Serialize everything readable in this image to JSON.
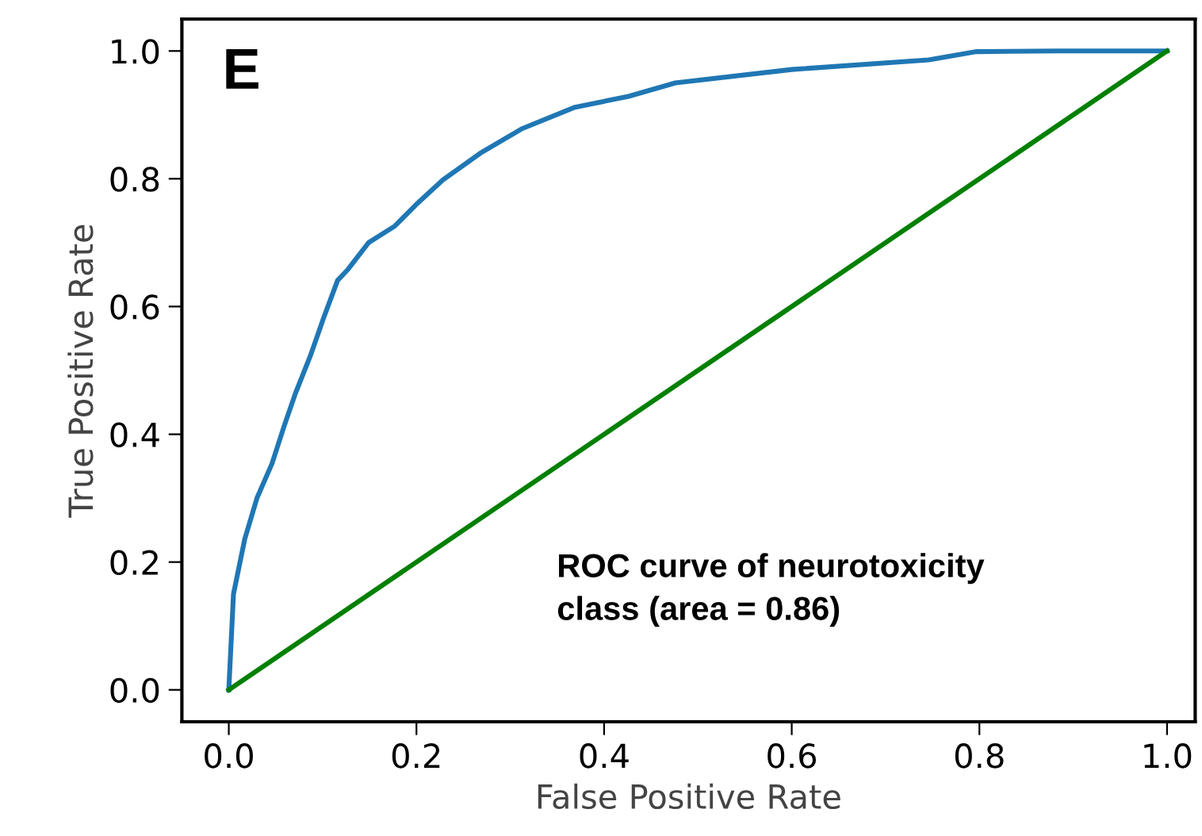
{
  "chart_data": {
    "type": "line",
    "xlabel": "False Positive Rate",
    "ylabel": "True Positive Rate",
    "annotations": [
      "E",
      "ROC curve of neurotoxicity\nclass (area = 0.86)"
    ],
    "xlim": [
      -0.05,
      1.03
    ],
    "ylim": [
      -0.05,
      1.05
    ],
    "xticks": [
      {
        "value": 0,
        "label": "0.0"
      },
      0.2,
      0.4,
      0.6,
      0.8,
      {
        "value": 1,
        "label": "1.0"
      }
    ],
    "yticks": [
      {
        "value": 0,
        "label": "0.0"
      },
      0.2,
      0.4,
      0.6,
      0.8,
      {
        "value": 1,
        "label": "1.0"
      }
    ],
    "grid": false,
    "legend": false,
    "line_style": "solid",
    "marker": "none",
    "series": [
      {
        "color": "#1f77b4",
        "x": [
          0,
          0.005,
          0.017,
          0.03,
          0.046,
          0.059,
          0.071,
          0.087,
          0.101,
          0.116,
          0.127,
          0.149,
          0.177,
          0.2,
          0.228,
          0.268,
          0.312,
          0.369,
          0.426,
          0.476,
          0.6,
          0.746,
          0.797,
          0.882,
          0.991,
          1
        ],
        "values": [
          0,
          0.15,
          0.236,
          0.3,
          0.354,
          0.413,
          0.464,
          0.523,
          0.582,
          0.641,
          0.658,
          0.7,
          0.726,
          0.76,
          0.798,
          0.84,
          0.878,
          0.912,
          0.929,
          0.95,
          0.971,
          0.986,
          0.999,
          1,
          1,
          1
        ]
      },
      {
        "color": "#008000",
        "x": [
          0,
          1
        ],
        "values": [
          0,
          1
        ]
      }
    ]
  }
}
